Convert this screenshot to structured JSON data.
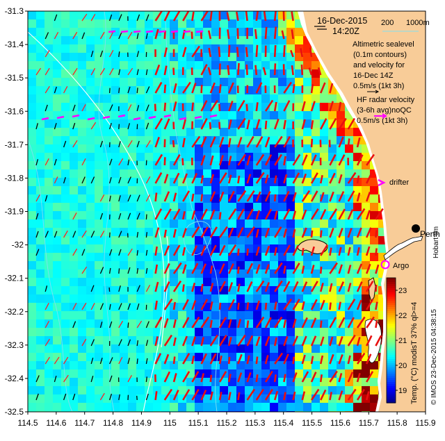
{
  "map": {
    "date": "16-Dec-2015",
    "time": "14:20Z",
    "depth_contours": [
      "200",
      "1000m"
    ],
    "altimetry_caption": [
      "Altimetric sealevel",
      "(0.1m contours)",
      "and velocity for",
      "16-Dec 14Z"
    ],
    "altimetry_scale_label": "0.5m/s (1kt 3h)",
    "hf_radar_caption": [
      "HF radar velocity",
      "(3-6h avg)noQC"
    ],
    "hf_radar_scale_label": "0.5m/s (1kt 3h)",
    "drifter_label": "drifter",
    "argo_label": "Argo",
    "city_label": "Perth",
    "right_edge_text": "Hobart tim",
    "credit": "© IMOS 23-Dec-2015 04:38:15",
    "colorbar_label": "Temp. (°C) modisT 37% ql>=4",
    "colorbar_ticks": [
      "23",
      "22",
      "21",
      "20",
      "19"
    ],
    "colorbar_range": [
      18.5,
      23.5
    ],
    "x_ticks": [
      "114.5",
      "114.6",
      "114.7",
      "114.8",
      "114.9",
      "115",
      "115.1",
      "115.2",
      "115.3",
      "115.4",
      "115.5",
      "115.6",
      "115.7",
      "115.8",
      "115.9"
    ],
    "y_ticks": [
      "-31.3",
      "-31.4",
      "-31.5",
      "-31.6",
      "-31.7",
      "-31.8",
      "-31.9",
      "-32",
      "-32.1",
      "-32.2",
      "-32.3",
      "-32.4",
      "-32.5"
    ],
    "lon_range": [
      114.5,
      115.9
    ],
    "lat_range": [
      -32.5,
      -31.3
    ],
    "colors": {
      "land": "#f8cc98",
      "hf_vectors": "#e01010",
      "altimetry_vectors": "#000000",
      "drifter": "#ff00ff",
      "contours": "#7fe0f0",
      "coast": "#ffffff"
    }
  }
}
